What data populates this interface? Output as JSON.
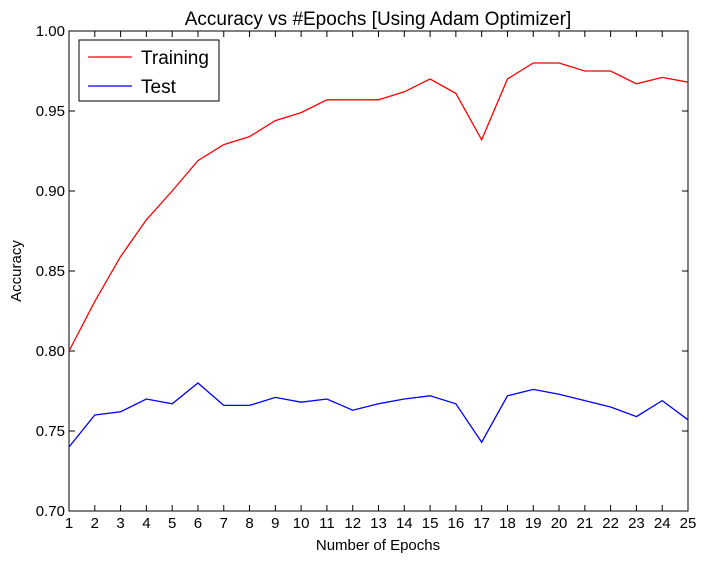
{
  "chart_data": {
    "type": "line",
    "title": "Accuracy vs #Epochs [Using Adam Optimizer]",
    "xlabel": "Number of Epochs",
    "ylabel": "Accuracy",
    "xlim": [
      1,
      25
    ],
    "ylim": [
      0.7,
      1.0
    ],
    "x": [
      1,
      2,
      3,
      4,
      5,
      6,
      7,
      8,
      9,
      10,
      11,
      12,
      13,
      14,
      15,
      16,
      17,
      18,
      19,
      20,
      21,
      22,
      23,
      24,
      25
    ],
    "xticks": [
      "1",
      "2",
      "3",
      "4",
      "5",
      "6",
      "7",
      "8",
      "9",
      "10",
      "11",
      "12",
      "13",
      "14",
      "15",
      "16",
      "17",
      "18",
      "19",
      "20",
      "21",
      "22",
      "23",
      "24",
      "25"
    ],
    "yticks": [
      "0.70",
      "0.75",
      "0.80",
      "0.85",
      "0.90",
      "0.95",
      "1.00"
    ],
    "ytick_values": [
      0.7,
      0.75,
      0.8,
      0.85,
      0.9,
      0.95,
      1.0
    ],
    "grid": false,
    "legend_position": "top-left",
    "series": [
      {
        "name": "Training",
        "color": "#ff0000",
        "values": [
          0.8,
          0.831,
          0.859,
          0.882,
          0.9,
          0.919,
          0.929,
          0.934,
          0.944,
          0.949,
          0.957,
          0.957,
          0.957,
          0.962,
          0.97,
          0.961,
          0.932,
          0.97,
          0.98,
          0.98,
          0.975,
          0.975,
          0.967,
          0.971,
          0.968
        ]
      },
      {
        "name": "Test",
        "color": "#0000ff",
        "values": [
          0.74,
          0.76,
          0.762,
          0.77,
          0.767,
          0.78,
          0.766,
          0.766,
          0.771,
          0.768,
          0.77,
          0.763,
          0.767,
          0.77,
          0.772,
          0.767,
          0.743,
          0.772,
          0.776,
          0.773,
          0.769,
          0.765,
          0.759,
          0.769,
          0.757
        ]
      }
    ]
  }
}
